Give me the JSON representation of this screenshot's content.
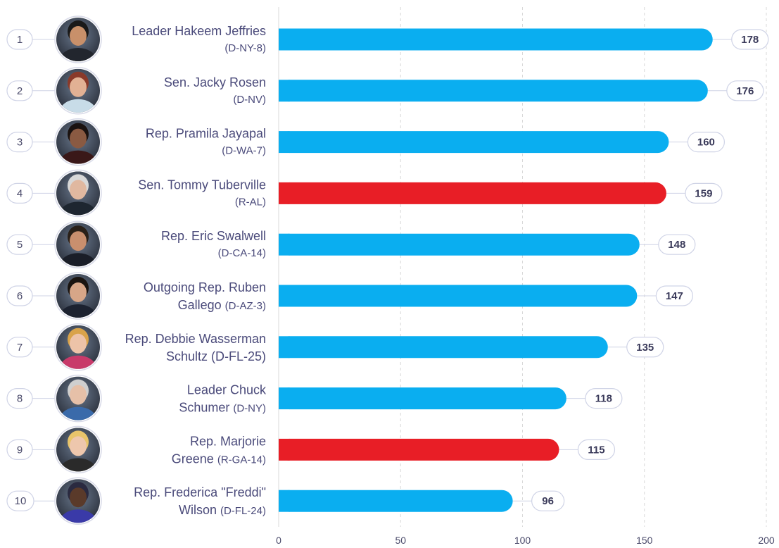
{
  "colors": {
    "dem": "#0aaef0",
    "rep": "#e81e26",
    "grid": "#d9d9d9",
    "pill_border": "#cfd3e6",
    "text": "#4a4a7a"
  },
  "chart_data": {
    "type": "bar",
    "orientation": "horizontal",
    "xlim": [
      0,
      200
    ],
    "xticks": [
      0,
      50,
      100,
      150,
      200
    ],
    "grid": true,
    "rows": [
      {
        "rank": "1",
        "name_lines": [
          "Leader Hakeem Jeffries"
        ],
        "party": "(D-NY-8)",
        "party_inline": false,
        "party_code": "D",
        "value": 178,
        "value_label": "178",
        "avatar": "portrait-man-dark-suit"
      },
      {
        "rank": "2",
        "name_lines": [
          "Sen. Jacky Rosen"
        ],
        "party": "(D-NV)",
        "party_inline": false,
        "party_code": "D",
        "value": 176,
        "value_label": "176",
        "avatar": "portrait-woman-red-hair"
      },
      {
        "rank": "3",
        "name_lines": [
          "Rep. Pramila Jayapal"
        ],
        "party": "(D-WA-7)",
        "party_inline": false,
        "party_code": "D",
        "value": 160,
        "value_label": "160",
        "avatar": "portrait-woman-dark-hair"
      },
      {
        "rank": "4",
        "name_lines": [
          "Sen. Tommy Tuberville"
        ],
        "party": "(R-AL)",
        "party_inline": false,
        "party_code": "R",
        "value": 159,
        "value_label": "159",
        "avatar": "portrait-man-grey-hair"
      },
      {
        "rank": "5",
        "name_lines": [
          "Rep. Eric Swalwell"
        ],
        "party": "(D-CA-14)",
        "party_inline": false,
        "party_code": "D",
        "value": 148,
        "value_label": "148",
        "avatar": "portrait-man-suit"
      },
      {
        "rank": "6",
        "name_lines": [
          "Outgoing Rep. Ruben",
          "Gallego"
        ],
        "party": "(D-AZ-3)",
        "party_inline": true,
        "party_code": "D",
        "value": 147,
        "value_label": "147",
        "avatar": "portrait-man-flag"
      },
      {
        "rank": "7",
        "name_lines": [
          "Rep. Debbie Wasserman",
          "Schultz (D-FL-25)"
        ],
        "party": "",
        "party_inline": true,
        "party_code": "D",
        "value": 135,
        "value_label": "135",
        "avatar": "portrait-woman-curly-blonde"
      },
      {
        "rank": "8",
        "name_lines": [
          "Leader Chuck",
          "Schumer"
        ],
        "party": "(D-NY)",
        "party_inline": true,
        "party_code": "D",
        "value": 118,
        "value_label": "118",
        "avatar": "portrait-man-glasses"
      },
      {
        "rank": "9",
        "name_lines": [
          "Rep. Marjorie",
          "Greene"
        ],
        "party": "(R-GA-14)",
        "party_inline": true,
        "party_code": "R",
        "value": 115,
        "value_label": "115",
        "avatar": "portrait-woman-blonde"
      },
      {
        "rank": "10",
        "name_lines": [
          "Rep. Frederica \"Freddi\"",
          "Wilson"
        ],
        "party": "(D-FL-24)",
        "party_inline": true,
        "party_code": "D",
        "value": 96,
        "value_label": "96",
        "avatar": "portrait-woman-cowboy-hat"
      }
    ]
  }
}
